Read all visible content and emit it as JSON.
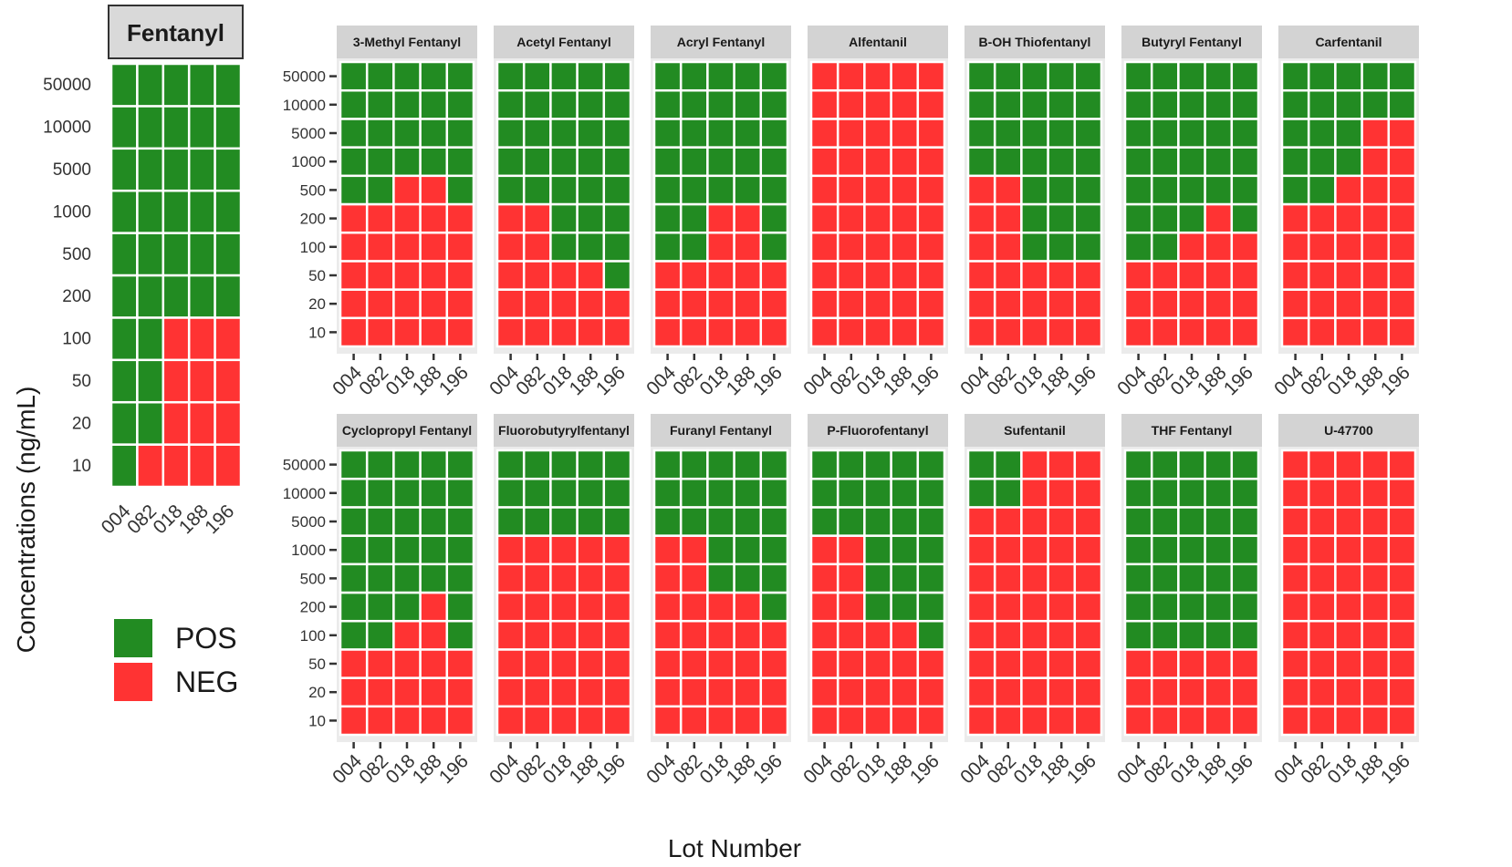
{
  "chart_data": {
    "type": "heatmap",
    "xlabel": "Lot Number",
    "ylabel": "Concentrations (ng/mL)",
    "lots": [
      "004",
      "082",
      "018",
      "188",
      "196"
    ],
    "concentrations_main": [
      "10",
      "20",
      "50",
      "100",
      "200",
      "500",
      "1000",
      "5000",
      "10000",
      "50000"
    ],
    "concentrations_facets": [
      "10",
      "20",
      "50",
      "100",
      "200",
      "500",
      "1000",
      "5000",
      "10000",
      "50000"
    ],
    "legend": [
      {
        "key": "POS",
        "label": "POS",
        "color": "#228b22"
      },
      {
        "key": "NEG",
        "label": "NEG",
        "color": "#ff3333"
      }
    ],
    "main_panel": {
      "name": "Fentanyl",
      "pos_min_index": [
        0,
        1,
        4,
        4,
        4
      ]
    },
    "panels": [
      {
        "name": "3-Methyl Fentanyl",
        "pos_min_index": [
          5,
          5,
          6,
          6,
          5
        ]
      },
      {
        "name": "Acetyl Fentanyl",
        "pos_min_index": [
          5,
          5,
          3,
          3,
          2
        ]
      },
      {
        "name": "Acryl Fentanyl",
        "pos_min_index": [
          3,
          3,
          5,
          5,
          3
        ]
      },
      {
        "name": "Alfentanil",
        "pos_min_index": [
          10,
          10,
          10,
          10,
          10
        ]
      },
      {
        "name": "B-OH Thiofentanyl",
        "pos_min_index": [
          6,
          6,
          3,
          3,
          3
        ]
      },
      {
        "name": "Butyryl Fentanyl",
        "pos_min_index": [
          3,
          3,
          4,
          5,
          4
        ]
      },
      {
        "name": "Carfentanil",
        "pos_min_index": [
          5,
          5,
          6,
          8,
          8
        ]
      },
      {
        "name": "Cyclopropyl Fentanyl",
        "pos_min_index": [
          3,
          3,
          4,
          5,
          3
        ]
      },
      {
        "name": "Fluorobutyrylfentanyl",
        "pos_min_index": [
          7,
          7,
          7,
          7,
          7
        ]
      },
      {
        "name": "Furanyl Fentanyl",
        "pos_min_index": [
          7,
          7,
          5,
          5,
          4
        ]
      },
      {
        "name": "P-Fluorofentanyl",
        "pos_min_index": [
          7,
          7,
          4,
          4,
          3
        ]
      },
      {
        "name": "Sufentanil",
        "pos_min_index": [
          8,
          8,
          10,
          10,
          10
        ]
      },
      {
        "name": "THF Fentanyl",
        "pos_min_index": [
          3,
          3,
          3,
          3,
          3
        ]
      },
      {
        "name": "U-47700",
        "pos_min_index": [
          10,
          10,
          10,
          10,
          10
        ]
      }
    ]
  }
}
